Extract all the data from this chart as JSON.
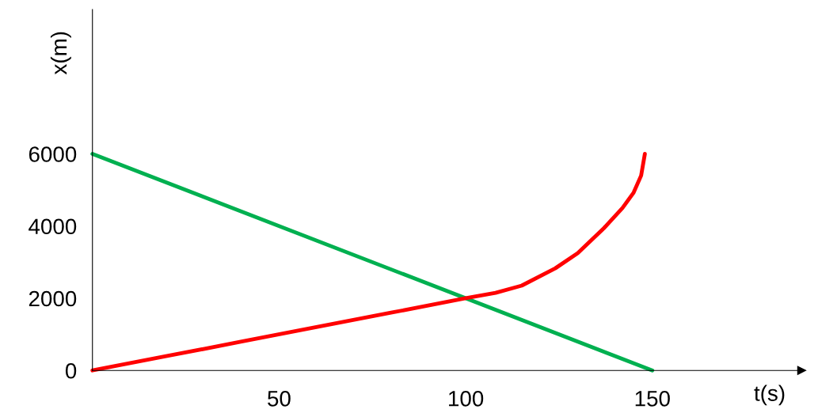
{
  "chart_data": {
    "type": "line",
    "xlabel": "t(s)",
    "ylabel": "x(m)",
    "xlim": [
      0,
      190
    ],
    "ylim": [
      0,
      10000
    ],
    "xticks": [
      50,
      100,
      150
    ],
    "yticks": [
      0,
      2000,
      4000,
      6000
    ],
    "grid": false,
    "legend": false,
    "marker": "none",
    "line_style": "solid",
    "series": [
      {
        "color": "#00b050",
        "x": [
          0,
          150
        ],
        "values": [
          6000,
          0
        ]
      },
      {
        "color": "#ff0000",
        "x": [
          0,
          20,
          40,
          60,
          80,
          100,
          108,
          115,
          124,
          130,
          137,
          142,
          145,
          147,
          148
        ],
        "values": [
          0,
          400,
          800,
          1200,
          1600,
          2000,
          2150,
          2350,
          2830,
          3250,
          3940,
          4500,
          4930,
          5400,
          6000
        ]
      }
    ]
  }
}
